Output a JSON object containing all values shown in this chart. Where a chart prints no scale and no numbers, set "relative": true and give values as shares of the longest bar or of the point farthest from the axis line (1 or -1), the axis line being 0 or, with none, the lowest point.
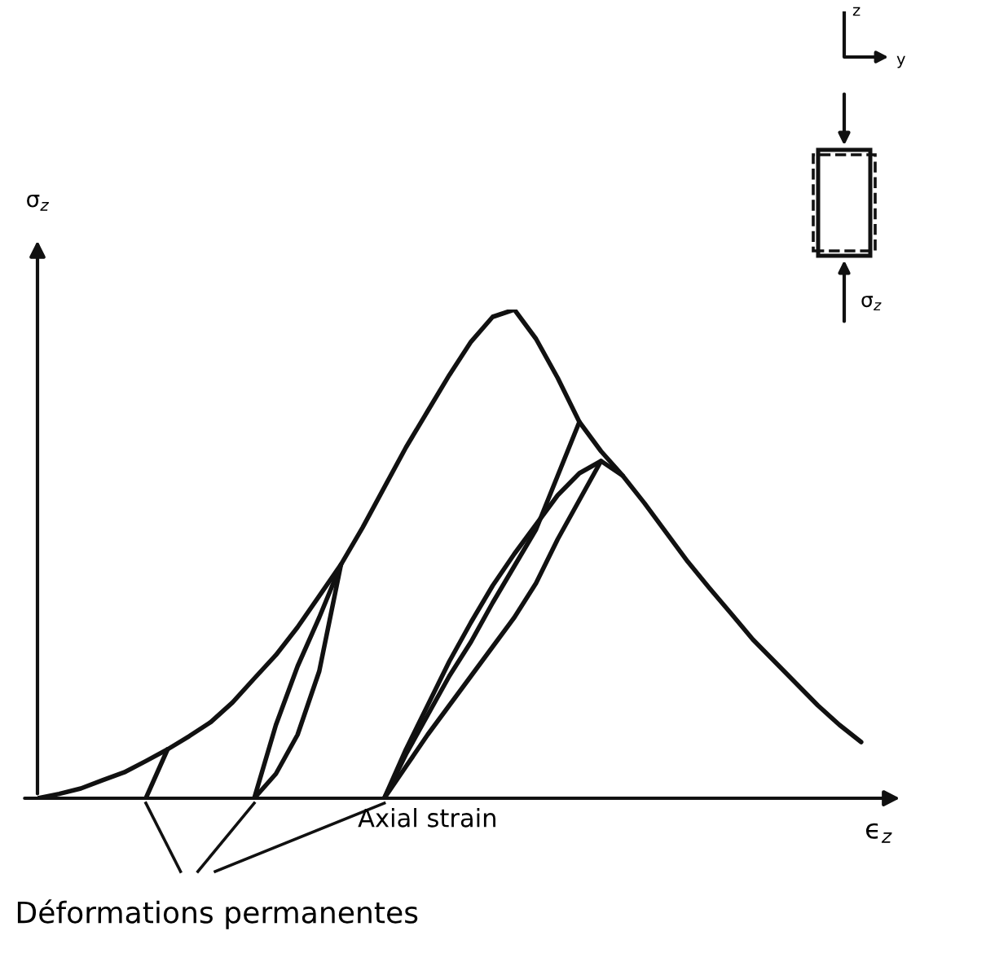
{
  "chart_data": {
    "type": "line",
    "relative": true,
    "xlabel": "Axial strain",
    "ylabel": "σ$_{z}$",
    "annotations": [
      "ϵ$_{z}$",
      "Déformations permanentes",
      "z",
      "y",
      "σ$_{z}$"
    ],
    "categories": [
      null,
      null,
      null,
      null,
      null,
      null,
      null,
      null,
      null,
      null,
      null,
      null,
      null,
      null,
      null,
      null,
      null,
      null,
      null,
      null,
      null,
      null,
      null,
      null,
      null,
      null,
      null,
      null,
      null,
      null,
      null,
      null,
      null,
      null,
      null,
      null,
      null,
      null,
      null,
      null
    ],
    "series": [
      {
        "color": "#111111",
        "values": [
          0,
          0.009,
          0.02,
          0.037,
          0.053,
          0.076,
          0.1,
          0.127,
          0.156,
          0.196,
          0.245,
          0.293,
          0.35,
          0.414,
          0.478,
          0.554,
          0.636,
          0.718,
          0.792,
          0.866,
          0.934,
          0.985,
          1,
          0.94,
          0.86,
          0.77,
          0.71,
          0.66,
          0.604,
          0.544,
          0.484,
          0.43,
          0.378,
          0.325,
          0.28,
          0.235,
          0.19,
          0.15,
          0.115,
          null
        ]
      },
      {
        "color": "#111111",
        "values": [
          null,
          null,
          null,
          null,
          null,
          0,
          0.1,
          null,
          null,
          null,
          null,
          null,
          null,
          null,
          null,
          null,
          null,
          null,
          null,
          null,
          null,
          null,
          null,
          null,
          null,
          null,
          null,
          null,
          null,
          null,
          null,
          null,
          null,
          null,
          null,
          null,
          null,
          null,
          null,
          null
        ]
      },
      {
        "color": "#111111",
        "values": [
          null,
          null,
          null,
          null,
          null,
          null,
          null,
          null,
          null,
          null,
          0,
          0.05,
          0.13,
          0.26,
          0.478,
          null,
          null,
          null,
          null,
          null,
          null,
          null,
          null,
          null,
          null,
          null,
          null,
          null,
          null,
          null,
          null,
          null,
          null,
          null,
          null,
          null,
          null,
          null,
          null,
          null
        ]
      },
      {
        "color": "#111111",
        "values": [
          null,
          null,
          null,
          null,
          null,
          null,
          null,
          null,
          null,
          null,
          0,
          0.15,
          0.27,
          0.37,
          0.478,
          null,
          null,
          null,
          null,
          null,
          null,
          null,
          null,
          null,
          null,
          null,
          null,
          null,
          null,
          null,
          null,
          null,
          null,
          null,
          null,
          null,
          null,
          null,
          null,
          null
        ]
      },
      {
        "color": "#111111",
        "values": [
          null,
          null,
          null,
          null,
          null,
          null,
          null,
          null,
          null,
          null,
          null,
          null,
          null,
          null,
          null,
          null,
          0,
          0.09,
          0.17,
          0.25,
          0.32,
          0.4,
          0.475,
          0.55,
          0.66,
          0.77,
          null,
          null,
          null,
          null,
          null,
          null,
          null,
          null,
          null,
          null,
          null,
          null,
          null,
          null
        ]
      },
      {
        "color": "#111111",
        "values": [
          null,
          null,
          null,
          null,
          null,
          null,
          null,
          null,
          null,
          null,
          null,
          null,
          null,
          null,
          null,
          null,
          0,
          0.1,
          0.19,
          0.28,
          0.36,
          0.435,
          0.5,
          0.56,
          0.62,
          0.665,
          0.69,
          0.66,
          null,
          null,
          null,
          null,
          null,
          null,
          null,
          null,
          null,
          null,
          null,
          null
        ]
      },
      {
        "color": "#111111",
        "values": [
          null,
          null,
          null,
          null,
          null,
          null,
          null,
          null,
          null,
          null,
          null,
          null,
          null,
          null,
          null,
          null,
          0,
          0.065,
          0.13,
          0.19,
          0.25,
          0.31,
          0.37,
          0.44,
          0.53,
          0.61,
          0.69,
          null,
          null,
          null,
          null,
          null,
          null,
          null,
          null,
          null,
          null,
          null,
          null,
          null
        ]
      }
    ]
  }
}
